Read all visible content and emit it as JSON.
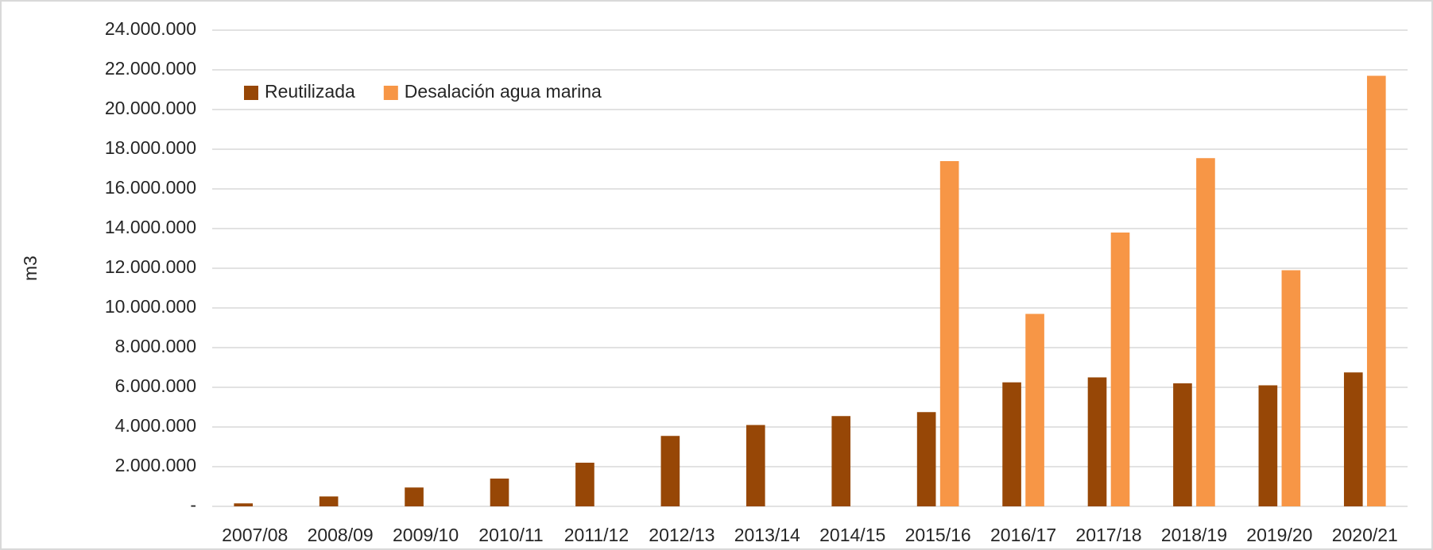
{
  "chart_data": {
    "type": "bar",
    "y_label": "m3",
    "categories": [
      "2007/08",
      "2008/09",
      "2009/10",
      "2010/11",
      "2011/12",
      "2012/13",
      "2013/14",
      "2014/15",
      "2015/16",
      "2016/17",
      "2017/18",
      "2018/19",
      "2019/20",
      "2020/21"
    ],
    "series": [
      {
        "name": "Reutilizada",
        "color": "#974706",
        "values": [
          150000,
          500000,
          950000,
          1400000,
          2200000,
          3550000,
          4100000,
          4550000,
          4750000,
          6250000,
          6500000,
          6200000,
          6100000,
          6750000
        ]
      },
      {
        "name": "Desalación agua marina",
        "color": "#f79646",
        "values": [
          null,
          null,
          null,
          null,
          null,
          null,
          null,
          null,
          17400000,
          9700000,
          13800000,
          17550000,
          11900000,
          21700000
        ]
      }
    ],
    "ylim": [
      0,
      24000000
    ],
    "yticks": [
      {
        "value": 0,
        "label": "-"
      },
      {
        "value": 2000000,
        "label": "2.000.000"
      },
      {
        "value": 4000000,
        "label": "4.000.000"
      },
      {
        "value": 6000000,
        "label": "6.000.000"
      },
      {
        "value": 8000000,
        "label": "8.000.000"
      },
      {
        "value": 10000000,
        "label": "10.000.000"
      },
      {
        "value": 12000000,
        "label": "12.000.000"
      },
      {
        "value": 14000000,
        "label": "14.000.000"
      },
      {
        "value": 16000000,
        "label": "16.000.000"
      },
      {
        "value": 18000000,
        "label": "18.000.000"
      },
      {
        "value": 20000000,
        "label": "20.000.000"
      },
      {
        "value": 22000000,
        "label": "22.000.000"
      },
      {
        "value": 24000000,
        "label": "24.000.000"
      }
    ],
    "grid": true,
    "legend": "top-left"
  }
}
